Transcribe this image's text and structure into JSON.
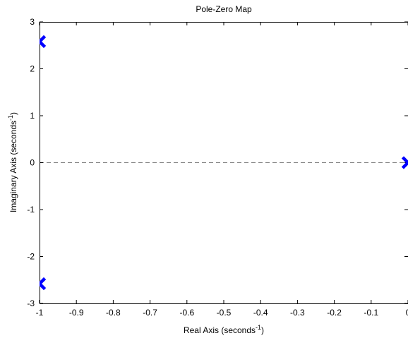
{
  "chart_data": {
    "type": "scatter",
    "title": "Pole-Zero Map",
    "xlabel": "Real Axis (seconds",
    "xlabel_sup": "-1",
    "xlabel_close": ")",
    "ylabel": "Imaginary Axis (seconds",
    "ylabel_sup": "-1",
    "ylabel_close": ")",
    "xlim": [
      -1,
      0
    ],
    "ylim": [
      -3,
      3
    ],
    "xticks": [
      -1,
      -0.9,
      -0.8,
      -0.7,
      -0.6,
      -0.5,
      -0.4,
      -0.3,
      -0.2,
      -0.1,
      0
    ],
    "xtick_labels": [
      "-1",
      "-0.9",
      "-0.8",
      "-0.7",
      "-0.6",
      "-0.5",
      "-0.4",
      "-0.3",
      "-0.2",
      "-0.1",
      "0"
    ],
    "yticks": [
      -3,
      -2,
      -1,
      0,
      1,
      2,
      3
    ],
    "ytick_labels": [
      "-3",
      "-2",
      "-1",
      "0",
      "1",
      "2",
      "3"
    ],
    "grid": false,
    "reference_line": {
      "y": 0,
      "style": "dashed",
      "color": "#808080"
    },
    "series": [
      {
        "marker": "x",
        "color": "#0000ff",
        "points": [
          {
            "x": -1.0,
            "y": 2.58
          },
          {
            "x": -1.0,
            "y": -2.58
          },
          {
            "x": 0.0,
            "y": 0.0
          }
        ]
      }
    ]
  }
}
